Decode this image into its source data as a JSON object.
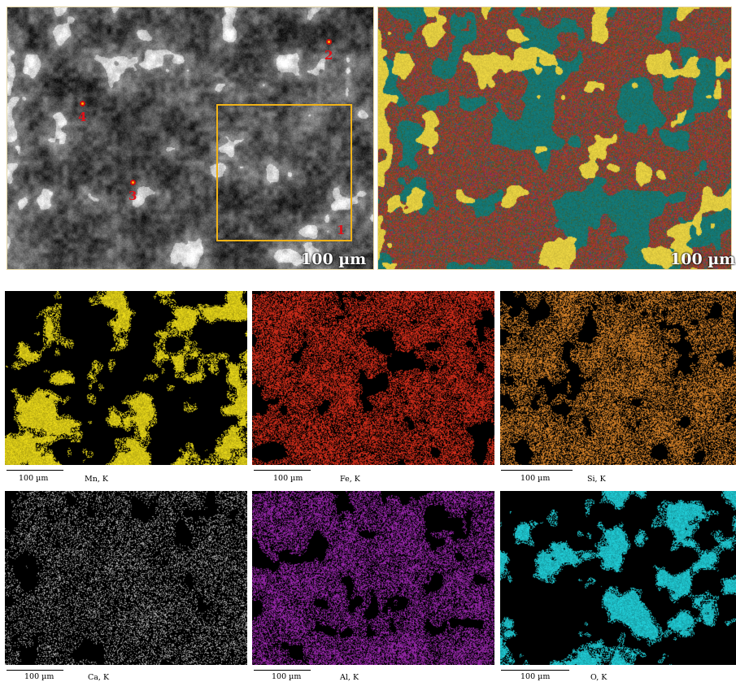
{
  "top": {
    "sem": {
      "scale": "100 µm",
      "markers": [
        "1",
        "2",
        "3",
        "4"
      ]
    },
    "overlay": {
      "scale": "100 µm"
    }
  },
  "maps": [
    {
      "element": "Mn, K",
      "scale": "100 µm",
      "color": "#f5e31a"
    },
    {
      "element": "Fe, K",
      "scale": "100 µm",
      "color": "#e0301c"
    },
    {
      "element": "Si, K",
      "scale": "100 µm",
      "color": "#e28a2c"
    },
    {
      "element": "Ca, K",
      "scale": "100 µm",
      "color": "#bdbdbd"
    },
    {
      "element": "Al, K",
      "scale": "100 µm",
      "color": "#a32ab8"
    },
    {
      "element": "O, K",
      "scale": "100 µm",
      "color": "#22d8e2"
    }
  ]
}
